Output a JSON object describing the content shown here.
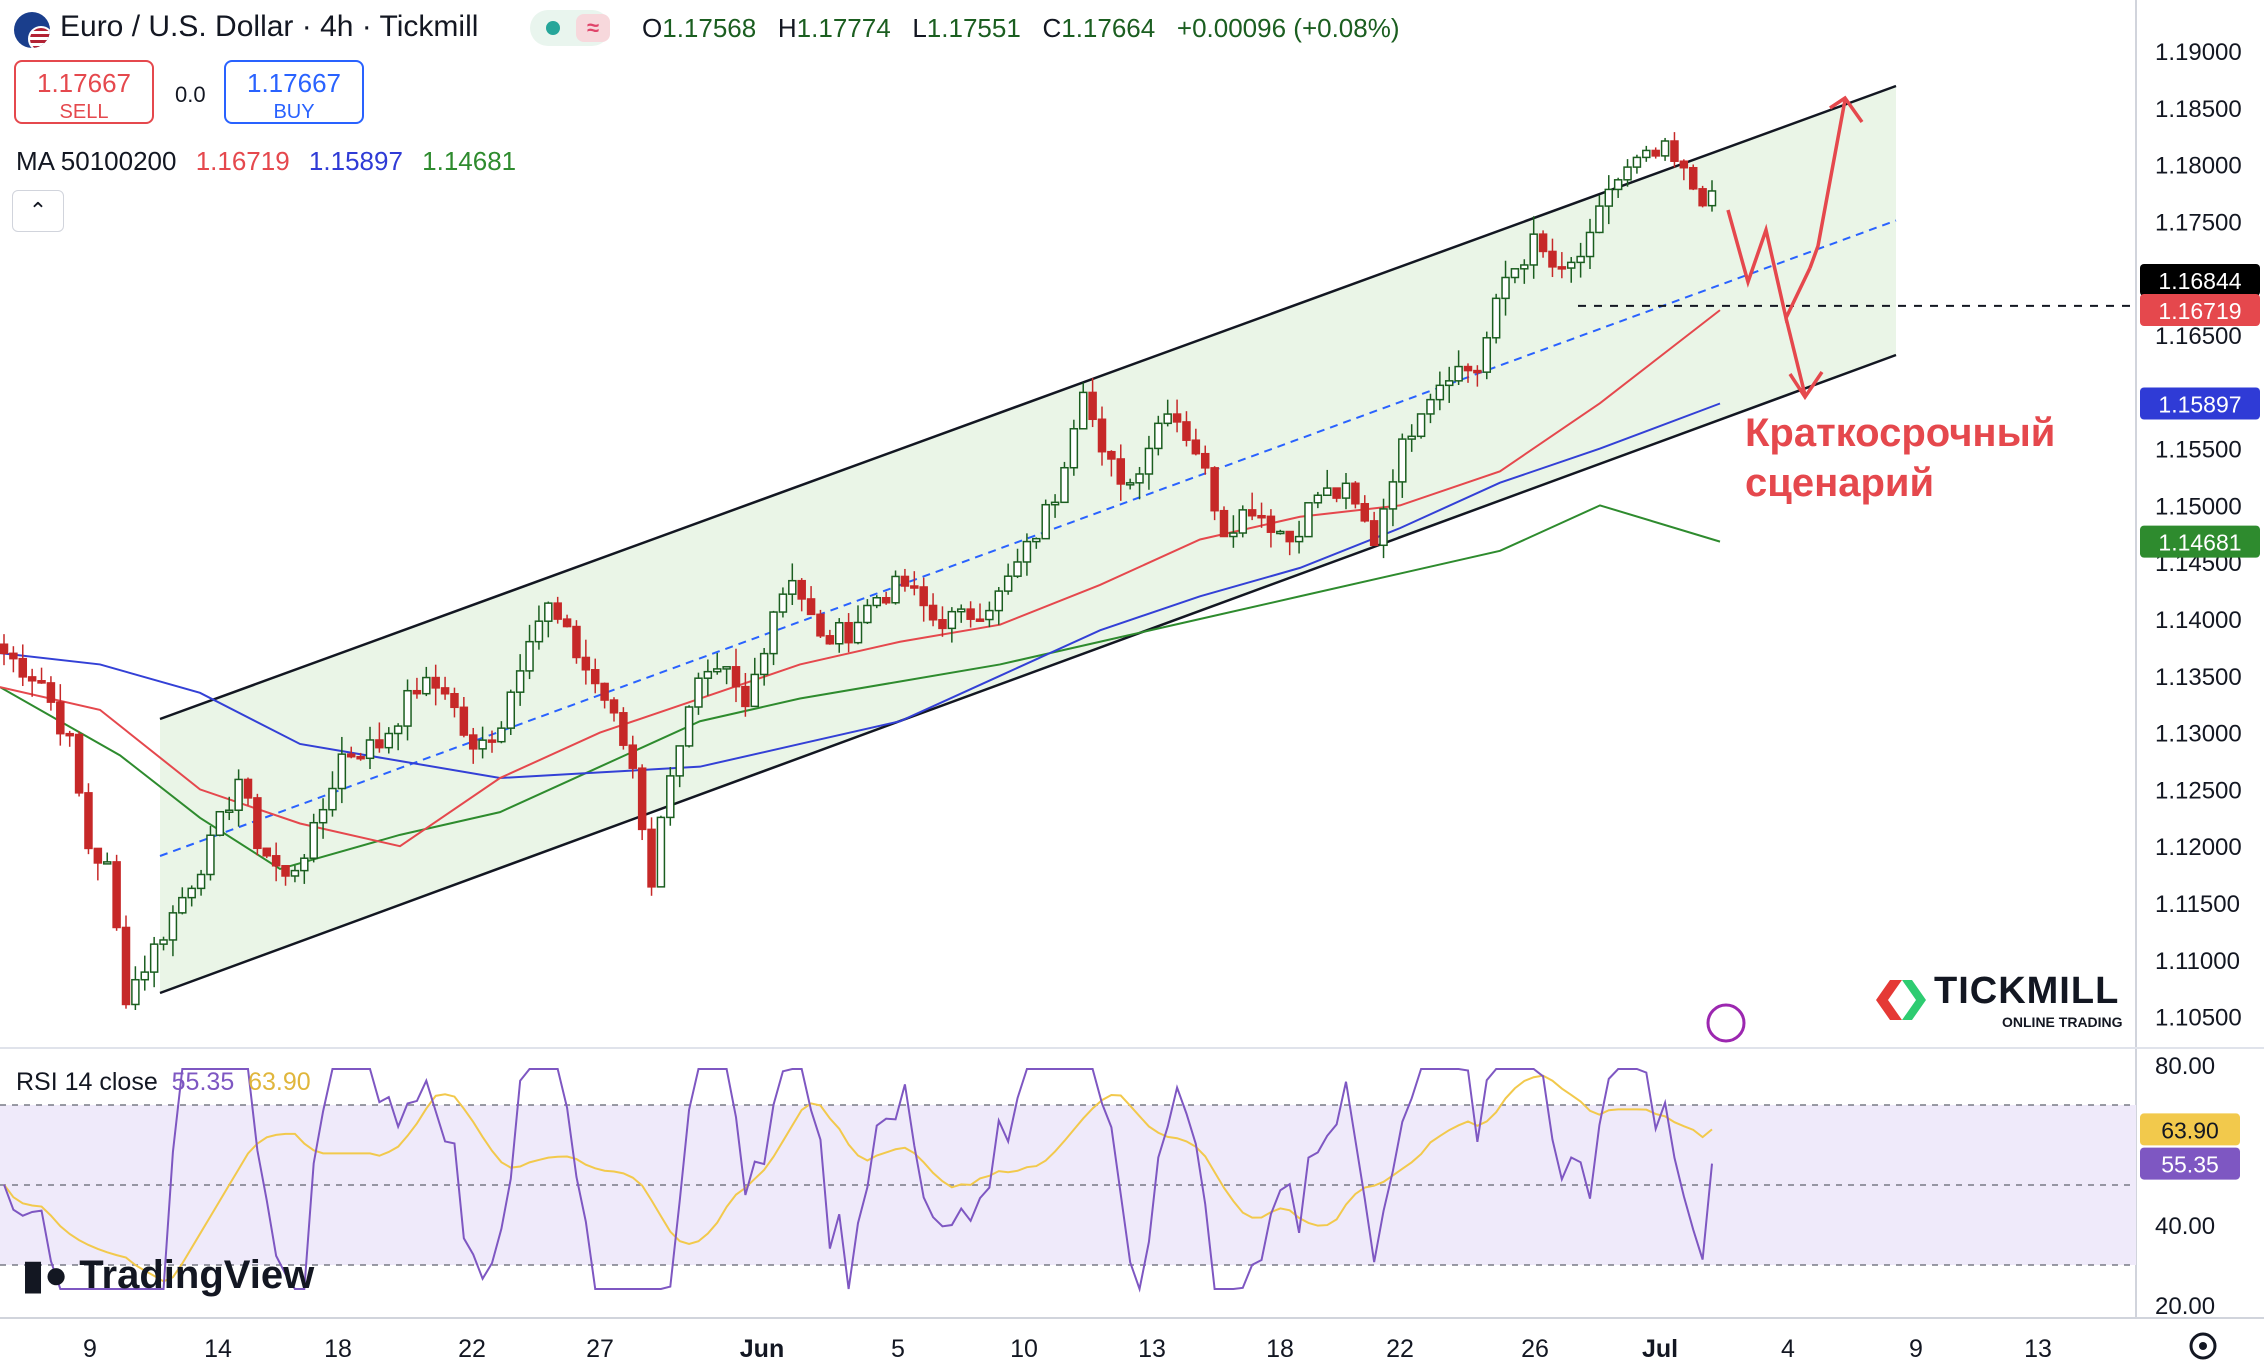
{
  "header": {
    "title": "Euro / U.S. Dollar · 4h · Tickmill",
    "ohlc": [
      {
        "k": "O",
        "v": "1.17568"
      },
      {
        "k": "H",
        "v": "1.17774"
      },
      {
        "k": "L",
        "v": "1.17551"
      },
      {
        "k": "C",
        "v": "1.17664"
      }
    ],
    "change": "+0.00096 (+0.08%)",
    "status_glyph": "≈"
  },
  "trade": {
    "sell_price": "1.17667",
    "sell_label": "SELL",
    "buy_price": "1.17667",
    "buy_label": "BUY",
    "spread": "0.0"
  },
  "ma_legend": {
    "label": "MA 50100200",
    "v1": "1.16719",
    "v2": "1.15897",
    "v3": "1.14681"
  },
  "rsi_legend": {
    "label": "RSI 14 close",
    "v1": "55.35",
    "v2": "63.90"
  },
  "annotation": {
    "line1": "Краткосрочный",
    "line2": "сценарий"
  },
  "brand": {
    "tradingview": "TradingView",
    "tickmill": "TICKMILL",
    "tickmill_sub": "ONLINE TRADING"
  },
  "colors": {
    "up": "#1b5e20",
    "down": "#c62828",
    "ma50": "#e5484d",
    "ma100": "#3340d6",
    "ma200": "#2e8b2e",
    "rsi": "#7e57c2",
    "rsi_ma": "#f2c94c",
    "channel_fill": "#eaf5e7",
    "rsi_band": "#efeafa",
    "annotation": "#e5484d"
  },
  "chart_data": {
    "type": "candlestick",
    "price_axis": {
      "ticks": [
        "1.19000",
        "1.18500",
        "1.18000",
        "1.17500",
        "1.16500",
        "1.15500",
        "1.15000",
        "1.14500",
        "1.14000",
        "1.13500",
        "1.13000",
        "1.12500",
        "1.12000",
        "1.11500",
        "1.11000",
        "1.10500"
      ]
    },
    "price_tags": [
      {
        "value": "1.16844",
        "color": "#000000"
      },
      {
        "value": "1.16719",
        "color": "#e5484d"
      },
      {
        "value": "1.15897",
        "color": "#2f3bd6"
      },
      {
        "value": "1.14681",
        "color": "#2e8b2e"
      }
    ],
    "rsi_axis": {
      "ticks": [
        "80.00",
        "40.00",
        "20.00"
      ]
    },
    "rsi_tags": [
      {
        "value": "63.90",
        "color": "#f2c94c",
        "text": "#131722"
      },
      {
        "value": "55.35",
        "color": "#7e57c2",
        "text": "#ffffff"
      }
    ],
    "time_axis": [
      "9",
      "14",
      "18",
      "22",
      "27",
      "Jun",
      "5",
      "10",
      "13",
      "18",
      "22",
      "26",
      "Jul",
      "4",
      "9",
      "13"
    ],
    "key_prices": {
      "start_close": 1.1365,
      "may_low": 1.1065,
      "may_26_high": 1.142,
      "jun_high": 1.163,
      "jun_low": 1.1455,
      "jul_high": 1.183,
      "last_close": 1.17664
    },
    "ma50_last": 1.16719,
    "ma100_last": 1.15897,
    "ma200_last": 1.14681,
    "horizontal_level": 1.16844,
    "rsi_last": 55.35,
    "rsi_ma_last": 63.9,
    "rsi_bands": [
      70,
      50,
      30
    ]
  }
}
